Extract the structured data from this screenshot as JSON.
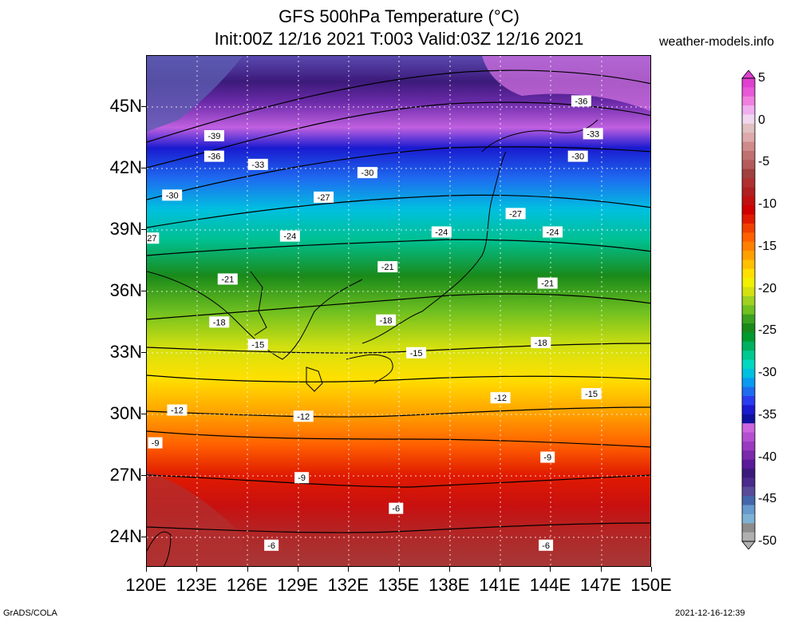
{
  "title_line1": "GFS 500hPa Temperature (°C)",
  "title_line2": "Init:00Z 12/16 2021 T:003 Valid:03Z 12/16 2021",
  "site": "weather-models.info",
  "credit_left": "GrADS/COLA",
  "credit_right": "2021-12-16-12:39",
  "map": {
    "lon_range": [
      120,
      150
    ],
    "lat_range": [
      22.5,
      47.5
    ],
    "lat_labels": [
      "45N",
      "42N",
      "39N",
      "36N",
      "33N",
      "30N",
      "27N",
      "24N"
    ],
    "lat_values": [
      45,
      42,
      39,
      36,
      33,
      30,
      27,
      24
    ],
    "lon_labels": [
      "120E",
      "123E",
      "126E",
      "129E",
      "132E",
      "135E",
      "138E",
      "141E",
      "144E",
      "147E",
      "150E"
    ],
    "lon_values": [
      120,
      123,
      126,
      129,
      132,
      135,
      138,
      141,
      144,
      147,
      150
    ],
    "contour_labels": [
      {
        "text": "-36",
        "lon": 145.8,
        "lat": 45.3
      },
      {
        "text": "-33",
        "lon": 146.5,
        "lat": 43.7
      },
      {
        "text": "-30",
        "lon": 145.6,
        "lat": 42.6
      },
      {
        "text": "-39",
        "lon": 124.0,
        "lat": 43.6
      },
      {
        "text": "-36",
        "lon": 124.0,
        "lat": 42.6
      },
      {
        "text": "-33",
        "lon": 126.6,
        "lat": 42.2
      },
      {
        "text": "-30",
        "lon": 133.1,
        "lat": 41.8
      },
      {
        "text": "-30",
        "lon": 121.5,
        "lat": 40.7
      },
      {
        "text": "-27",
        "lon": 130.5,
        "lat": 40.6
      },
      {
        "text": "-27",
        "lon": 141.9,
        "lat": 39.8
      },
      {
        "text": "27",
        "lon": 120.3,
        "lat": 38.6
      },
      {
        "text": "-24",
        "lon": 128.5,
        "lat": 38.7
      },
      {
        "text": "-24",
        "lon": 137.5,
        "lat": 38.9
      },
      {
        "text": "-24",
        "lon": 144.1,
        "lat": 38.9
      },
      {
        "text": "-21",
        "lon": 124.8,
        "lat": 36.6
      },
      {
        "text": "-21",
        "lon": 134.3,
        "lat": 37.2
      },
      {
        "text": "-21",
        "lon": 143.8,
        "lat": 36.4
      },
      {
        "text": "-18",
        "lon": 124.3,
        "lat": 34.5
      },
      {
        "text": "-18",
        "lon": 134.2,
        "lat": 34.6
      },
      {
        "text": "-18",
        "lon": 143.4,
        "lat": 33.5
      },
      {
        "text": "-15",
        "lon": 126.6,
        "lat": 33.4
      },
      {
        "text": "-15",
        "lon": 136.0,
        "lat": 33.0
      },
      {
        "text": "-15",
        "lon": 146.4,
        "lat": 31.0
      },
      {
        "text": "-12",
        "lon": 121.8,
        "lat": 30.2
      },
      {
        "text": "-12",
        "lon": 129.3,
        "lat": 29.9
      },
      {
        "text": "-12",
        "lon": 141.0,
        "lat": 30.8
      },
      {
        "text": "-9",
        "lon": 120.5,
        "lat": 28.6
      },
      {
        "text": "-9",
        "lon": 129.2,
        "lat": 26.9
      },
      {
        "text": "-9",
        "lon": 143.8,
        "lat": 27.9
      },
      {
        "text": "-6",
        "lon": 134.8,
        "lat": 25.4
      },
      {
        "text": "-6",
        "lon": 127.4,
        "lat": 23.6
      },
      {
        "text": "-6",
        "lon": 143.7,
        "lat": 23.6
      }
    ]
  },
  "colorbar": {
    "labels": [
      "5",
      "0",
      "-5",
      "-10",
      "-15",
      "-20",
      "-25",
      "-30",
      "-35",
      "-40",
      "-45",
      "-50"
    ],
    "values": [
      5,
      0,
      -5,
      -10,
      -15,
      -20,
      -25,
      -30,
      -35,
      -40,
      -45,
      -50
    ],
    "colors": [
      "#b0b0b0",
      "#8c8c8c",
      "#7eb2d4",
      "#6699cc",
      "#4466aa",
      "#5a4a9a",
      "#4a2a8a",
      "#3c1a7a",
      "#5a1a9a",
      "#7a2aaa",
      "#9a3ac0",
      "#b450d0",
      "#cc66dd",
      "#1010a0",
      "#1a1ad0",
      "#2a3cf0",
      "#1e6cf0",
      "#0a9af0",
      "#00c0e0",
      "#00d8c0",
      "#00c890",
      "#00b060",
      "#009a30",
      "#1a8a1a",
      "#3ca020",
      "#70c020",
      "#a0d020",
      "#d4e010",
      "#f0f000",
      "#ffe000",
      "#ffc000",
      "#ffa000",
      "#ff8000",
      "#ff6000",
      "#f04000",
      "#e01a00",
      "#d00000",
      "#c01010",
      "#b02020",
      "#b03030",
      "#a04040",
      "#b45a5a",
      "#c07070",
      "#d08a8a",
      "#dcaaaa",
      "#e0c0c0",
      "#f0d8f0",
      "#f0b0f0",
      "#f080e0",
      "#e858d8",
      "#e040d0"
    ]
  }
}
